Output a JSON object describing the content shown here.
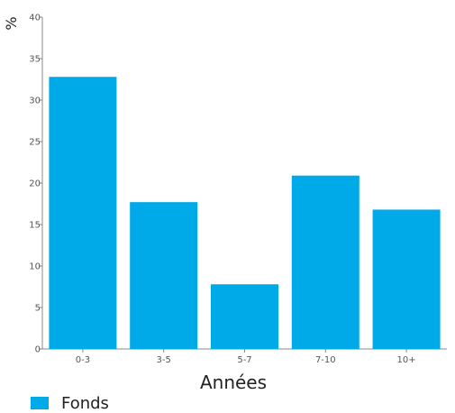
{
  "chart_data": {
    "type": "bar",
    "categories": [
      "0-3",
      "3-5",
      "5-7",
      "7-10",
      "10+"
    ],
    "series": [
      {
        "name": "Fonds",
        "values": [
          32.8,
          17.7,
          7.8,
          20.9,
          16.8
        ]
      }
    ],
    "xlabel": "Années",
    "ylabel": "%",
    "ylim": [
      0,
      40
    ],
    "yticks": [
      0,
      5,
      10,
      15,
      20,
      25,
      30,
      35,
      40
    ],
    "grid": false,
    "legend": "bottom-left",
    "color": "#00a9e8",
    "axis_color": "#888888"
  }
}
